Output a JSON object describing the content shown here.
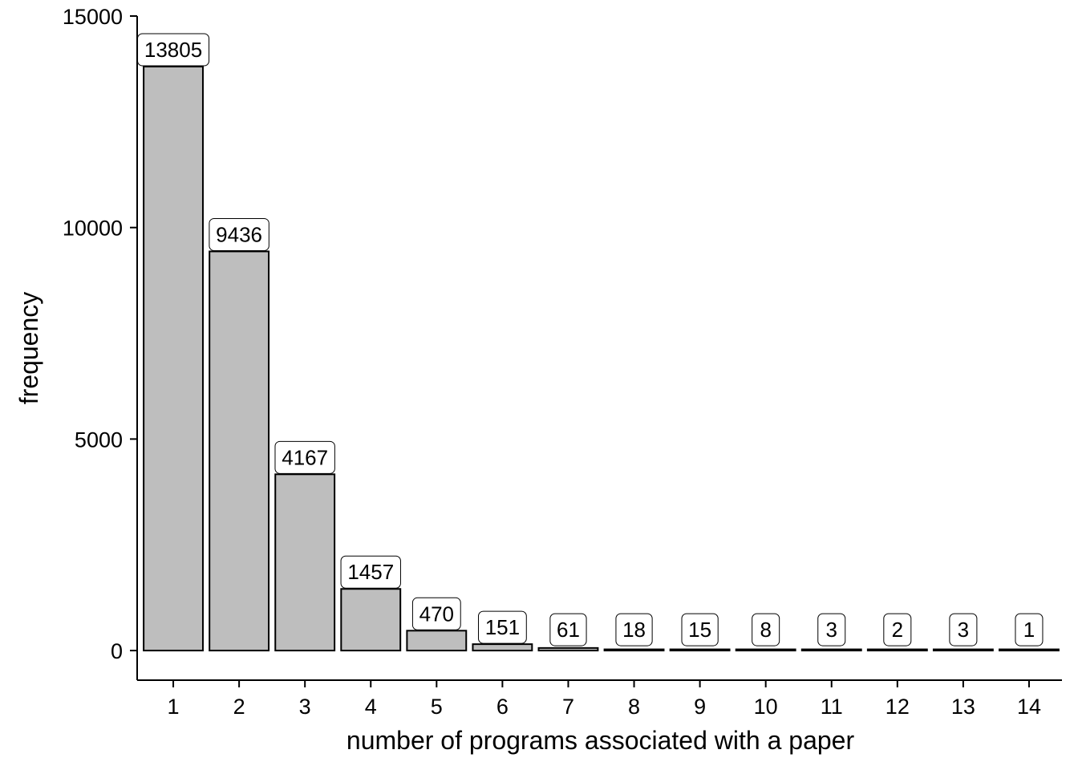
{
  "chart_data": {
    "type": "bar",
    "categories": [
      "1",
      "2",
      "3",
      "4",
      "5",
      "6",
      "7",
      "8",
      "9",
      "10",
      "11",
      "12",
      "13",
      "14"
    ],
    "values": [
      13805,
      9436,
      4167,
      1457,
      470,
      151,
      61,
      18,
      15,
      8,
      3,
      2,
      3,
      1
    ],
    "data_labels": [
      "13805",
      "9436",
      "4167",
      "1457",
      "470",
      "151",
      "61",
      "18",
      "15",
      "8",
      "3",
      "2",
      "3",
      "1"
    ],
    "xlabel": "number of programs associated with a paper",
    "ylabel": "frequency",
    "ylim": [
      -700,
      15000
    ],
    "yticks": [
      0,
      5000,
      10000,
      15000
    ],
    "ytick_labels": [
      "0",
      "5000",
      "10000",
      "15000"
    ],
    "grid": false,
    "legend": "none",
    "colors": {
      "bar_fill": "#bebebe",
      "bar_stroke": "#000000",
      "label_fill": "#ffffff"
    }
  }
}
